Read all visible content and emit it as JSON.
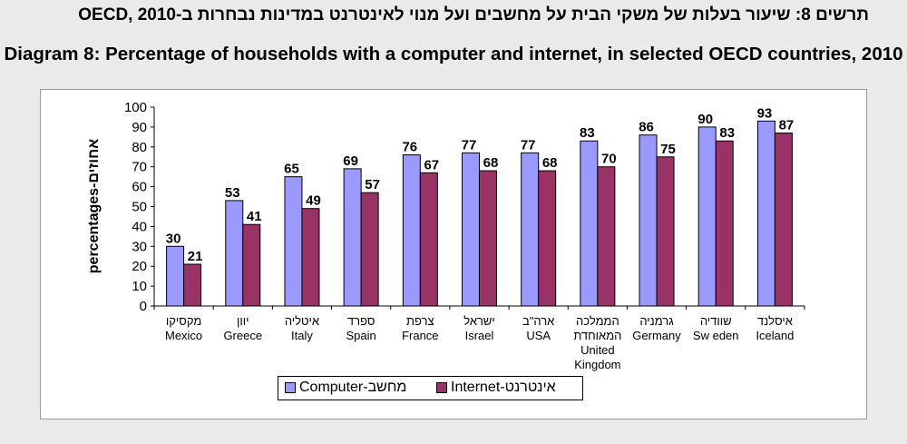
{
  "titles": {
    "hebrew": "תרשים 8: שיעור בעלות של משקי הבית על מחשבים ועל מנוי לאינטרנט במדינות נבחרות ב-OECD, 2010",
    "english": "Diagram 8: Percentage of households with a computer and internet, in selected OECD countries, 2010"
  },
  "chart_data": {
    "type": "bar",
    "ylabel": "percentages-אחוזים",
    "ylim": [
      0,
      100
    ],
    "yticks": [
      0,
      10,
      20,
      30,
      40,
      50,
      60,
      70,
      80,
      90,
      100
    ],
    "grid": false,
    "legend_position": "bottom",
    "categories": [
      {
        "he": "מקסיקו",
        "en": "Mexico"
      },
      {
        "he": "יוון",
        "en": "Greece"
      },
      {
        "he": "איטליה",
        "en": "Italy"
      },
      {
        "he": "ספרד",
        "en": "Spain"
      },
      {
        "he": "צרפת",
        "en": "France"
      },
      {
        "he": "ישראל",
        "en": "Israel"
      },
      {
        "he": "ארה\"ב",
        "en": "USA"
      },
      {
        "he": "הממלכה המאוחדת",
        "en": "United Kingdom"
      },
      {
        "he": "גרמניה",
        "en": "Germany"
      },
      {
        "he": "שוודיה",
        "en": "Sw eden"
      },
      {
        "he": "איסלנד",
        "en": "Iceland"
      }
    ],
    "series": [
      {
        "name": "Computer-מחשב",
        "color": "#9999ff",
        "values": [
          30,
          53,
          65,
          69,
          76,
          77,
          77,
          83,
          86,
          90,
          93
        ]
      },
      {
        "name": "Internet-אינטרנט",
        "color": "#993366",
        "values": [
          21,
          41,
          49,
          57,
          67,
          68,
          68,
          70,
          75,
          83,
          87
        ]
      }
    ]
  }
}
